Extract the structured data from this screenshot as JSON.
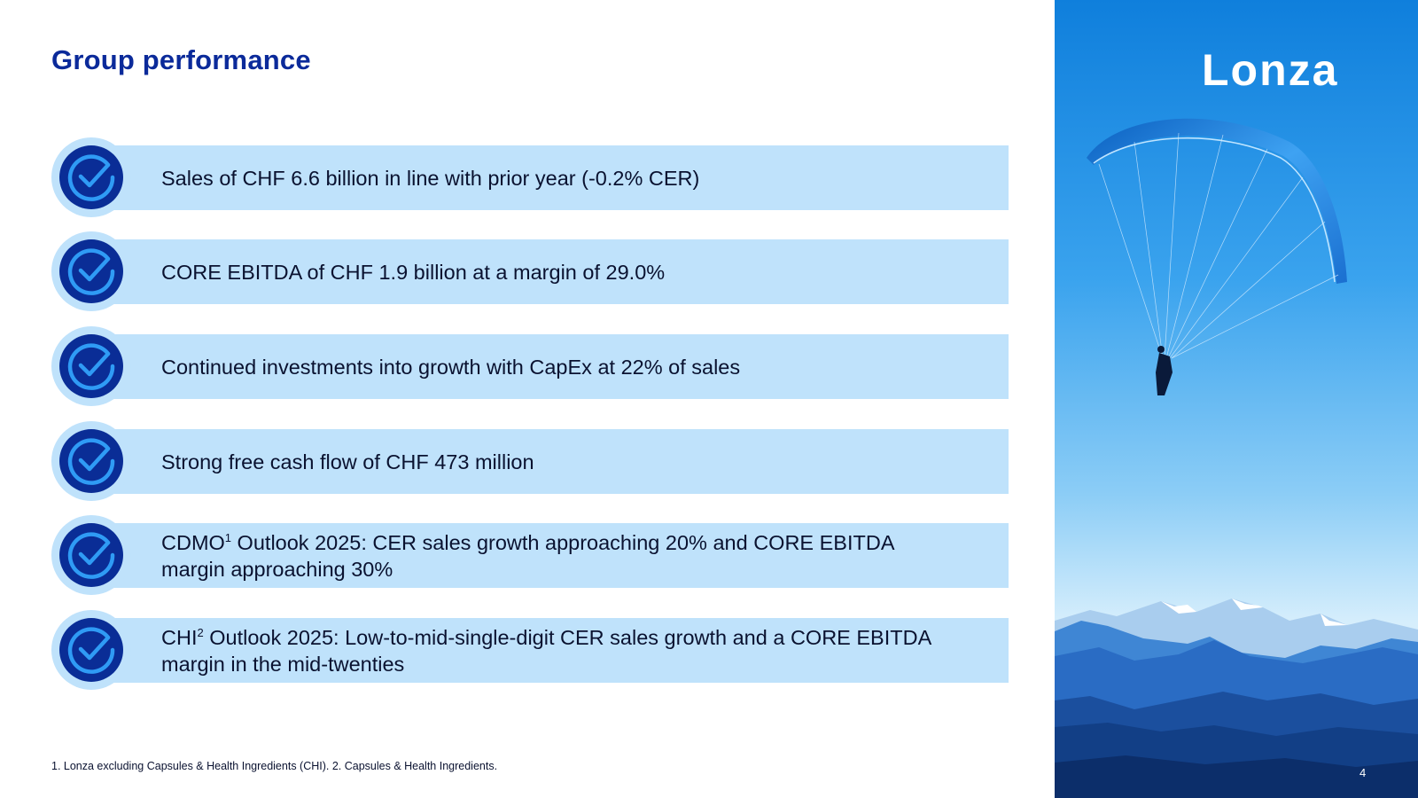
{
  "slide": {
    "title": "Group performance",
    "bullets": [
      {
        "text": "Sales of CHF 6.6 billion in line with prior year (-0.2% CER)"
      },
      {
        "text": "CORE EBITDA of CHF 1.9 billion at a margin of 29.0%"
      },
      {
        "text": "Continued investments into growth with CapEx at 22% of sales"
      },
      {
        "text": "Strong free cash flow of CHF 473 million"
      },
      {
        "prefix": "CDMO",
        "sup": "1",
        "text": " Outlook 2025: CER sales growth approaching 20% and CORE EBITDA margin approaching 30%"
      },
      {
        "prefix": "CHI",
        "sup": "2",
        "text": " Outlook 2025: Low-to-mid-single-digit CER sales growth and a CORE EBITDA margin in the mid-twenties"
      }
    ],
    "footnote": "1. Lonza excluding Capsules & Health Ingredients (CHI).  2. Capsules & Health Ingredients.",
    "logo": "Lonza",
    "page_number": "4",
    "icon": "check-circle-icon",
    "photo_subject": "paraglider-over-mountains-photo",
    "colors": {
      "title": "#0b2a9a",
      "bar": "#bfe2fb",
      "badge": "#0a2d96",
      "check": "#2f9bf5"
    }
  }
}
